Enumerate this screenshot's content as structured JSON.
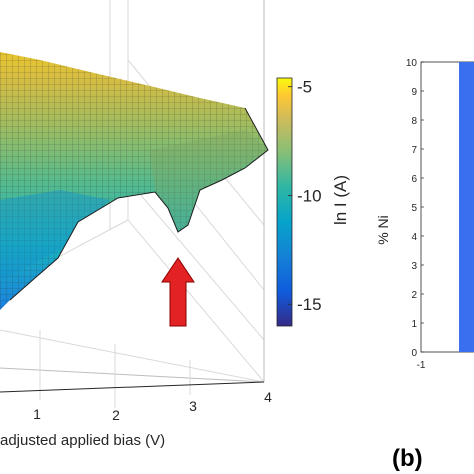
{
  "chart_data": [
    {
      "type": "surface3d",
      "xlabel": "adjusted applied bias (V)",
      "x_ticks": [
        "1",
        "2",
        "3",
        "4"
      ],
      "xlim": [
        0,
        4
      ],
      "colorbar": {
        "label": "ln I (A)",
        "ticks": [
          -5,
          -10,
          -15
        ],
        "range": [
          -16,
          -4.6
        ],
        "colormap": "parula"
      },
      "annotation": "red arrow",
      "surface": {
        "front_edge": [
          {
            "x": 0.0,
            "z": -13.8
          },
          {
            "x": 0.5,
            "z": -12.8
          },
          {
            "x": 1.0,
            "z": -11.3
          },
          {
            "x": 1.5,
            "z": -10.6
          },
          {
            "x": 2.0,
            "z": -9.9
          },
          {
            "x": 2.5,
            "z": -8.9
          },
          {
            "x": 3.0,
            "z": -9.6
          },
          {
            "x": 3.3,
            "z": -8.0
          },
          {
            "x": 3.7,
            "z": -7.3
          }
        ]
      }
    },
    {
      "type": "bar",
      "panel_label": "(b)",
      "ylabel": "% Ni",
      "ylim": [
        0,
        10
      ],
      "y_ticks": [
        "0",
        "1",
        "2",
        "3",
        "4",
        "5",
        "6",
        "7",
        "8",
        "9",
        "10"
      ],
      "x_ticks": [
        "-1"
      ],
      "bar_color": "#3a6ff0"
    }
  ]
}
